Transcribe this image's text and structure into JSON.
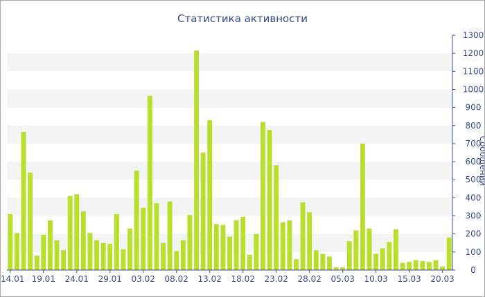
{
  "chart_data": {
    "type": "bar",
    "title": "Статистика активности",
    "xlabel": "",
    "ylabel": "Сообщений",
    "ylim": [
      0,
      1300
    ],
    "y_ticks": [
      0,
      100,
      200,
      300,
      400,
      500,
      600,
      700,
      800,
      900,
      1000,
      1100,
      1200,
      1300
    ],
    "y_axis_side": "right",
    "grid": "horizontal bands",
    "x_tick_labels": [
      "14.01",
      "19.01",
      "24.01",
      "29.01",
      "03.02",
      "08.02",
      "13.02",
      "18.02",
      "23.02",
      "28.02",
      "05.03",
      "10.03",
      "15.03",
      "20.03"
    ],
    "x_tick_every": 5,
    "values": [
      310,
      205,
      765,
      540,
      80,
      195,
      275,
      165,
      110,
      410,
      420,
      325,
      205,
      165,
      150,
      145,
      310,
      115,
      230,
      550,
      345,
      965,
      370,
      150,
      380,
      105,
      165,
      305,
      1215,
      650,
      830,
      255,
      250,
      185,
      275,
      295,
      85,
      200,
      820,
      775,
      580,
      265,
      275,
      60,
      375,
      320,
      110,
      90,
      75,
      15,
      15,
      160,
      220,
      700,
      230,
      90,
      120,
      155,
      225,
      40,
      45,
      55,
      50,
      45,
      55,
      20,
      180
    ],
    "bar_color": "#b9de2c"
  }
}
